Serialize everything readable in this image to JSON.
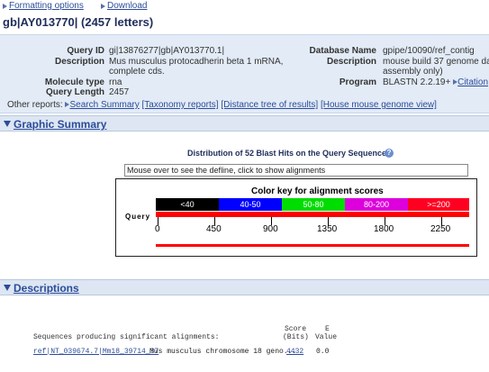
{
  "toolbar": {
    "formatting_label": "Formatting options",
    "download_label": "Download"
  },
  "title": "gb|AY013770| (2457 letters)",
  "query": {
    "id_label": "Query ID",
    "id_value": "gi|13876277|gb|AY013770.1|",
    "desc_label": "Description",
    "desc_line1": "Mus musculus protocadherin beta 1 mRNA,",
    "desc_line2": "complete cds.",
    "moltype_label": "Molecule type",
    "moltype_value": "rna",
    "length_label": "Query Length",
    "length_value": "2457"
  },
  "database": {
    "name_label": "Database Name",
    "name_value": "gpipe/10090/ref_contig",
    "desc_label": "Description",
    "desc_line1": "mouse build 37 genome da",
    "desc_line2": "assembly only)",
    "program_label": "Program",
    "program_value": "BLASTN 2.2.19+",
    "citation_label": "Citation"
  },
  "other_reports": {
    "label": "Other reports:",
    "links": [
      "Search Summary",
      "[Taxonomy reports]",
      "[Distance tree of results]",
      "[House mouse genome view]"
    ]
  },
  "graphic_summary": {
    "header": "Graphic Summary",
    "distribution_text": "Distribution of 52 Blast Hits on the Query Sequence",
    "defline_text": "Mouse over to see the defline, click to show alignments",
    "colorkey_title": "Color key for alignment scores",
    "segments": [
      {
        "label": "<40",
        "color": "#000000"
      },
      {
        "label": "40-50",
        "color": "#0000ff"
      },
      {
        "label": "50-80",
        "color": "#00dd00"
      },
      {
        "label": "80-200",
        "color": "#dd00dd"
      },
      {
        "label": ">=200",
        "color": "#ff0022"
      }
    ],
    "query_label": "Query",
    "ticks": [
      "0",
      "450",
      "900",
      "1350",
      "1800",
      "2250"
    ],
    "hit_color": "#ff0000"
  },
  "descriptions": {
    "header": "Descriptions",
    "col_label": "Sequences producing significant alignments:",
    "score_label_1": "Score",
    "score_label_2": "(Bits)",
    "evalue_label_1": "E",
    "evalue_label_2": "Value",
    "rows": [
      {
        "accession": "ref|NT_039674.7|Mm18_39714_37",
        "desc": "Mus musculus chromosome 18 geno...",
        "score": "4432",
        "evalue": "0.0"
      }
    ]
  }
}
